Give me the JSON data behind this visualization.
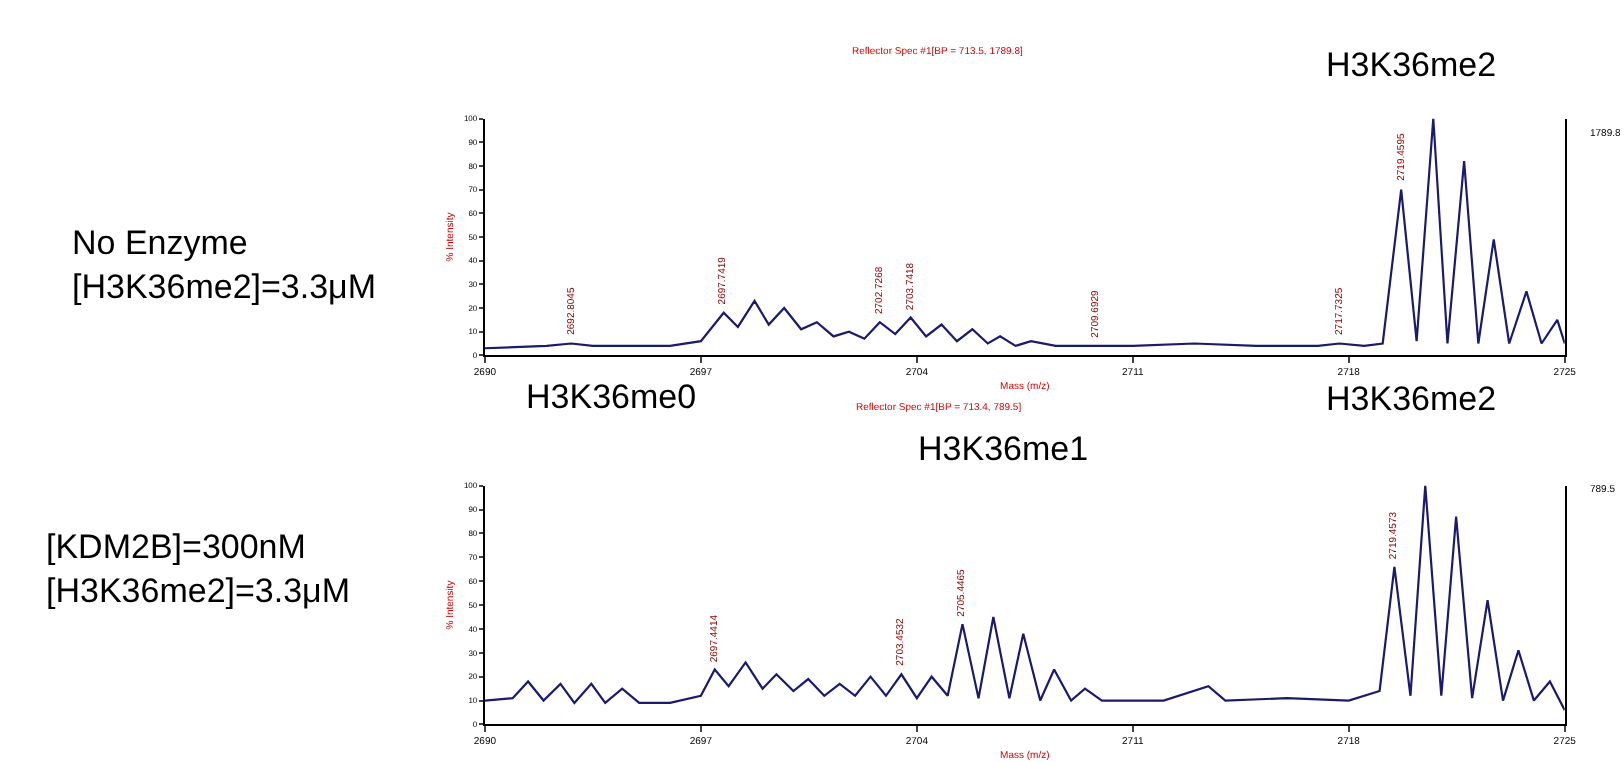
{
  "chart_data": [
    {
      "type": "line",
      "title": "Reflector Spec #1[BP = 713.5, 1789.8]",
      "xlabel": "Mass (m/z)",
      "ylabel": "% Intensity",
      "xlim": [
        2690,
        2725
      ],
      "xticks": [
        2690,
        2697,
        2704,
        2711,
        2718,
        2725
      ],
      "ylim": [
        0,
        100
      ],
      "yticks": [
        0,
        10,
        20,
        30,
        40,
        50,
        60,
        70,
        80,
        90,
        100
      ],
      "marker": "none",
      "line_style": "solid",
      "series": [
        {
          "color": "#1a1a6e",
          "x": [
            2690,
            2692,
            2692.8,
            2693.5,
            2696,
            2697,
            2697.74,
            2698.2,
            2698.74,
            2699.2,
            2699.7,
            2700.25,
            2700.76,
            2701.3,
            2701.8,
            2702.3,
            2702.8,
            2703.3,
            2703.8,
            2704.3,
            2704.8,
            2705.3,
            2705.8,
            2706.3,
            2706.7,
            2707.2,
            2707.7,
            2708.5,
            2709.8,
            2711,
            2713,
            2715,
            2717,
            2717.7,
            2718.5,
            2719.1,
            2719.7,
            2720.2,
            2720.74,
            2721.2,
            2721.74,
            2722.2,
            2722.7,
            2723.2,
            2723.76,
            2724.25,
            2724.76,
            2725
          ],
          "values": [
            3,
            4,
            5,
            4,
            4,
            6,
            18,
            12,
            23,
            13,
            20,
            11,
            14,
            8,
            10,
            7,
            14,
            9,
            16,
            8,
            13,
            6,
            11,
            5,
            8,
            4,
            6,
            4,
            4,
            4,
            5,
            4,
            4,
            5,
            4,
            5,
            70,
            6,
            100,
            5,
            82,
            5,
            49,
            5,
            27,
            5,
            15,
            5
          ]
        }
      ],
      "annotations": [
        "No Enzyme\n[H3K36me2]=3.3μM",
        "H3K36me2",
        "1789.8",
        {
          "text": "2692.8045",
          "x": 2692.8,
          "y": 5
        },
        {
          "text": "2697.7419",
          "x": 2697.74,
          "y": 18
        },
        {
          "text": "2702.7268",
          "x": 2702.8,
          "y": 14
        },
        {
          "text": "2703.7418",
          "x": 2703.8,
          "y": 16
        },
        {
          "text": "2709.6929",
          "x": 2709.8,
          "y": 4
        },
        {
          "text": "2717.7325",
          "x": 2717.7,
          "y": 5
        },
        {
          "text": "2719.4595",
          "x": 2719.7,
          "y": 70
        }
      ]
    },
    {
      "type": "line",
      "title": "Reflector Spec #1[BP = 713.4, 789.5]",
      "xlabel": "Mass (m/z)",
      "ylabel": "% Intensity",
      "xlim": [
        2690,
        2725
      ],
      "xticks": [
        2690,
        2697,
        2704,
        2711,
        2718,
        2725
      ],
      "ylim": [
        0,
        100
      ],
      "yticks": [
        0,
        10,
        20,
        30,
        40,
        50,
        60,
        70,
        80,
        90,
        100
      ],
      "marker": "none",
      "line_style": "solid",
      "series": [
        {
          "color": "#1a1a6e",
          "x": [
            2690,
            2690.9,
            2691.4,
            2691.9,
            2692.45,
            2692.9,
            2693.45,
            2693.9,
            2694.45,
            2695,
            2696,
            2697,
            2697.45,
            2697.9,
            2698.45,
            2699,
            2699.45,
            2700,
            2700.48,
            2701,
            2701.5,
            2702,
            2702.5,
            2703,
            2703.5,
            2704,
            2704.48,
            2705,
            2705.48,
            2706,
            2706.48,
            2707,
            2707.45,
            2708,
            2708.45,
            2709,
            2709.45,
            2710,
            2712,
            2713.45,
            2714,
            2716,
            2718,
            2719,
            2719.48,
            2720,
            2720.48,
            2721,
            2721.48,
            2722,
            2722.5,
            2723,
            2723.5,
            2724,
            2724.52,
            2725
          ],
          "values": [
            10,
            11,
            18,
            10,
            17,
            9,
            17,
            9,
            15,
            9,
            9,
            12,
            23,
            16,
            26,
            15,
            21,
            14,
            19,
            12,
            17,
            12,
            20,
            12,
            21,
            11,
            20,
            12,
            42,
            11,
            45,
            11,
            38,
            10,
            23,
            10,
            15,
            10,
            10,
            16,
            10,
            11,
            10,
            14,
            66,
            12,
            100,
            12,
            87,
            11,
            52,
            10,
            31,
            10,
            18,
            6
          ]
        }
      ],
      "annotations": [
        "[KDM2B]=300nM\n[H3K36me2]=3.3μM",
        "H3K36me0",
        "H3K36me1",
        "H3K36me2",
        "789.5",
        {
          "text": "2697.4414",
          "x": 2697.45,
          "y": 23
        },
        {
          "text": "2703.4532",
          "x": 2703.5,
          "y": 21
        },
        {
          "text": "2705.4465",
          "x": 2705.48,
          "y": 42
        },
        {
          "text": "2719.4573",
          "x": 2719.48,
          "y": 66
        }
      ]
    }
  ]
}
